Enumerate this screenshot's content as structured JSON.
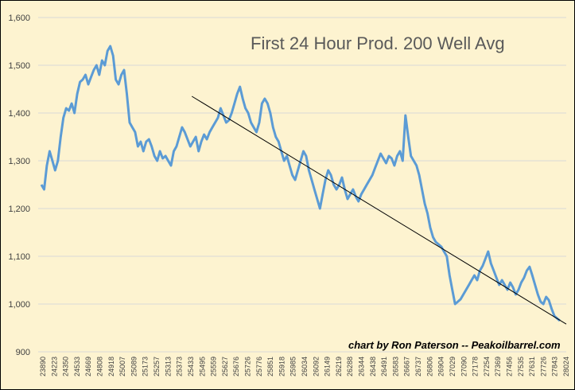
{
  "chart_data": {
    "type": "line",
    "title": "First 24 Hour Prod. 200 Well Avg",
    "credit": "chart by Ron Paterson -- Peakoilbarrel.com",
    "xlabel": "",
    "ylabel": "",
    "ylim": [
      900,
      1600
    ],
    "y_ticks": [
      "900",
      "1,000",
      "1,100",
      "1,200",
      "1,300",
      "1,400",
      "1,500",
      "1,600"
    ],
    "x_tick_labels": [
      "23890",
      "24223",
      "24350",
      "24533",
      "24669",
      "24808",
      "24918",
      "25007",
      "25089",
      "25173",
      "25257",
      "25313",
      "25373",
      "25433",
      "25495",
      "25559",
      "25627",
      "25676",
      "25726",
      "25776",
      "25851",
      "25918",
      "25985",
      "26034",
      "26092",
      "26149",
      "26219",
      "26288",
      "26344",
      "26438",
      "26491",
      "26583",
      "26667",
      "26737",
      "26806",
      "26904",
      "27029",
      "27090",
      "27178",
      "27254",
      "27369",
      "27456",
      "27535",
      "27631",
      "27726",
      "27843",
      "28024"
    ],
    "grid": "horizontal",
    "legend": "none",
    "colors": {
      "series": "#5b9bd5",
      "trend": "#000000",
      "background": "#fdf3d0"
    },
    "series": [
      {
        "values": [
          1250,
          1240,
          1290,
          1320,
          1300,
          1280,
          1300,
          1350,
          1390,
          1410,
          1405,
          1420,
          1400,
          1440,
          1465,
          1470,
          1480,
          1460,
          1475,
          1490,
          1500,
          1480,
          1510,
          1500,
          1530,
          1540,
          1520,
          1470,
          1460,
          1480,
          1490,
          1440,
          1380,
          1370,
          1360,
          1330,
          1340,
          1320,
          1340,
          1345,
          1330,
          1310,
          1300,
          1320,
          1305,
          1310,
          1300,
          1290,
          1320,
          1330,
          1350,
          1370,
          1360,
          1345,
          1330,
          1340,
          1350,
          1320,
          1340,
          1355,
          1345,
          1360,
          1370,
          1380,
          1390,
          1410,
          1395,
          1380,
          1385,
          1400,
          1420,
          1440,
          1455,
          1430,
          1410,
          1400,
          1380,
          1370,
          1360,
          1380,
          1420,
          1430,
          1420,
          1400,
          1370,
          1350,
          1340,
          1320,
          1300,
          1310,
          1290,
          1270,
          1260,
          1280,
          1300,
          1320,
          1310,
          1280,
          1260,
          1240,
          1220,
          1200,
          1230,
          1260,
          1280,
          1270,
          1250,
          1240,
          1250,
          1265,
          1240,
          1220,
          1230,
          1240,
          1225,
          1215,
          1230,
          1240,
          1250,
          1260,
          1270,
          1285,
          1300,
          1315,
          1305,
          1295,
          1310,
          1305,
          1290,
          1310,
          1320,
          1300,
          1395,
          1350,
          1310,
          1300,
          1290,
          1270,
          1240,
          1210,
          1190,
          1160,
          1140,
          1130,
          1125,
          1120,
          1110,
          1100,
          1060,
          1030,
          1000,
          1005,
          1010,
          1020,
          1030,
          1040,
          1050,
          1060,
          1050,
          1070,
          1080,
          1095,
          1110,
          1085,
          1070,
          1055,
          1040,
          1050,
          1040,
          1030,
          1045,
          1035,
          1020,
          1030,
          1045,
          1055,
          1070,
          1078,
          1060,
          1040,
          1020,
          1005,
          1000,
          1015,
          1008,
          990,
          975,
          970,
          965
        ]
      }
    ],
    "trend": {
      "start": {
        "x_frac": 0.291,
        "y": 1435
      },
      "end": {
        "x_frac": 1.0,
        "y": 958
      }
    }
  }
}
